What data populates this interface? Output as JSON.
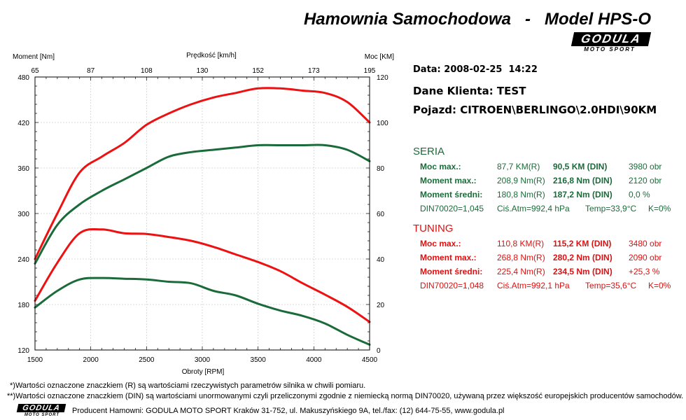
{
  "header": {
    "title": "Hamownia Samochodowa   -   Model HPS-O",
    "logo_text": "GODULA",
    "logo_sub": "MOTO SPORT"
  },
  "info": {
    "date": "Data: 2008-02-25  14:22",
    "client": "Dane Klienta: TEST",
    "vehicle": "Pojazd: CITROEN\\BERLINGO\\2.0HDI\\90KM"
  },
  "colors": {
    "seria": "#1b6b3a",
    "tuning": "#dd1111"
  },
  "seria": {
    "title": "SERIA",
    "rows": [
      {
        "label": "Moc max.:",
        "real": "87,7 KM(R)",
        "din": "90,5 KM (DIN)",
        "extra": "3980 obr"
      },
      {
        "label": "Moment max.:",
        "real": "208,9 Nm(R)",
        "din": "216,8 Nm (DIN)",
        "extra": "2120 obr"
      },
      {
        "label": "Moment średni:",
        "real": "180,8 Nm(R)",
        "din": "187,2 Nm (DIN)",
        "extra": "0,0 %"
      }
    ],
    "footer": {
      "din": "DIN70020=1,045",
      "atm": "Ciś.Atm=992,4 hPa",
      "temp": "Temp=33,9°C",
      "k": "K=0%"
    }
  },
  "tuning": {
    "title": "TUNING",
    "rows": [
      {
        "label": "Moc max.:",
        "real": "110,8 KM(R)",
        "din": "115,2 KM (DIN)",
        "extra": "3480 obr"
      },
      {
        "label": "Moment max.:",
        "real": "268,8 Nm(R)",
        "din": "280,2 Nm (DIN)",
        "extra": "2090 obr"
      },
      {
        "label": "Moment średni:",
        "real": "225,4 Nm(R)",
        "din": "234,5 Nm (DIN)",
        "extra": "+25,3 %"
      }
    ],
    "footer": {
      "din": "DIN70020=1,048",
      "atm": "Ciś.Atm=992,1 hPa",
      "temp": "Temp=35,6°C",
      "k": "K=0%"
    }
  },
  "footnotes": {
    "r": "*)Wartości oznaczone znaczkiem (R) są wartościami rzeczywistych parametrów silnika w chwili pomiaru.",
    "din": "**)Wartości oznaczone znaczkiem (DIN) są wartościami unormowanymi czyli przeliczonymi zgodnie z niemiecką normą DIN70020, używaną przez większość europejskich producentów samochodów.",
    "producer": "Producent Hamowni: GODULA MOTO SPORT Kraków 31-752, ul. Makuszyńskiego 9A, tel./fax: (12) 644-75-55, www.godula.pl"
  },
  "chart_data": {
    "type": "line",
    "x": [
      1500,
      1700,
      1900,
      2100,
      2300,
      2500,
      2700,
      2900,
      3100,
      3300,
      3500,
      3700,
      3900,
      4100,
      4300,
      4500
    ],
    "xlabel": "Obroty [RPM]",
    "xlim": [
      1500,
      4500
    ],
    "x_ticks": [
      "1500",
      "2000",
      "2500",
      "3000",
      "3500",
      "4000",
      "4500"
    ],
    "x_top_label": "Prędkość [km/h]",
    "x_top_ticks": [
      "65",
      "87",
      "108",
      "130",
      "152",
      "173",
      "195"
    ],
    "y_left_label": "Moment [Nm]",
    "y_left_lim": [
      120,
      480
    ],
    "y_left_ticks": [
      "120",
      "180",
      "240",
      "300",
      "360",
      "420",
      "480"
    ],
    "y_right_label": "Moc [KM]",
    "y_right_lim": [
      0,
      120
    ],
    "y_right_ticks": [
      "0",
      "20",
      "40",
      "60",
      "80",
      "100",
      "120"
    ],
    "grid": true,
    "series": [
      {
        "group": "tuning",
        "quantity": "power",
        "axis": "right",
        "color": "#ee1111",
        "values": [
          40,
          60,
          78,
          85,
          91,
          99,
          104,
          108,
          111,
          113,
          115,
          115,
          114,
          113,
          109,
          100
        ]
      },
      {
        "group": "seria",
        "quantity": "power",
        "axis": "right",
        "color": "#1b6b3a",
        "values": [
          38,
          55,
          64,
          70,
          75,
          80,
          85,
          87,
          88,
          89,
          90,
          90,
          90,
          90,
          88,
          83
        ]
      },
      {
        "group": "tuning",
        "quantity": "torque",
        "axis": "left",
        "color": "#ee1111",
        "values": [
          185,
          235,
          274,
          279,
          274,
          273,
          269,
          264,
          256,
          246,
          236,
          224,
          208,
          193,
          177,
          157
        ]
      },
      {
        "group": "seria",
        "quantity": "torque",
        "axis": "left",
        "color": "#1b6b3a",
        "values": [
          176,
          198,
          213,
          215,
          214,
          213,
          210,
          208,
          198,
          192,
          181,
          172,
          165,
          155,
          140,
          127
        ]
      }
    ]
  }
}
